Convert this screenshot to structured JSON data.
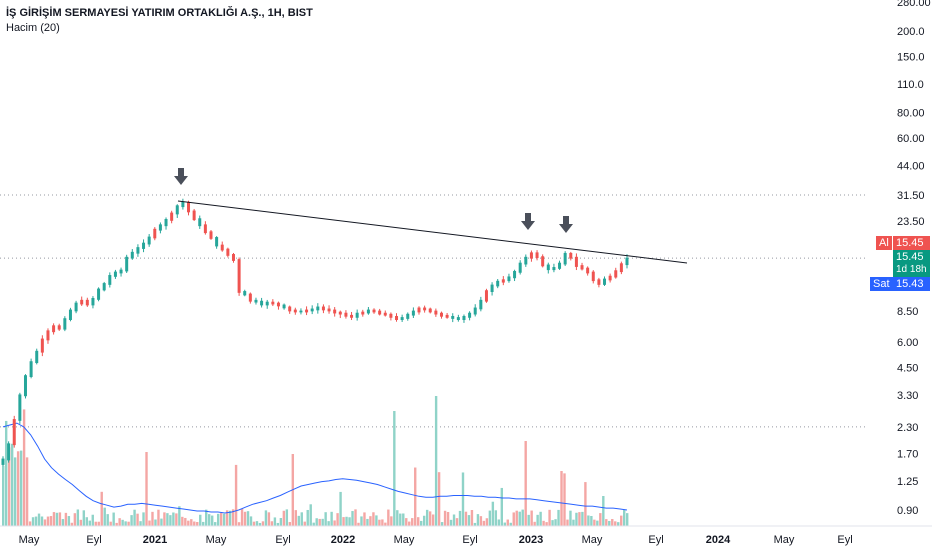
{
  "header": {
    "title": "İŞ GİRİŞİM SERMAYESİ YATIRIM ORTAKLIĞI A.Ş., 1H, BIST",
    "indicator": "Hacim (20)"
  },
  "price_axis": {
    "top_label": "280.00",
    "labels": [
      "200.0",
      "150.0",
      "110.0",
      "80.00",
      "60.00",
      "44.00",
      "31.50",
      "23.50",
      "15.45",
      "8.50",
      "6.00",
      "4.50",
      "3.30",
      "2.30",
      "1.70",
      "1.25",
      "0.90"
    ]
  },
  "badges": {
    "ask_label": "Al",
    "ask_value": "15.45",
    "last_value": "15.45",
    "countdown": "1d 18h",
    "bid_label": "Sat",
    "bid_value": "15.43"
  },
  "time_axis": [
    "May",
    "Eyl",
    "2021",
    "May",
    "Eyl",
    "2022",
    "May",
    "Eyl",
    "2023",
    "May",
    "Eyl",
    "2024",
    "May",
    "Eyl"
  ],
  "colors": {
    "up": "#26a69a",
    "down": "#ef5350",
    "up_vol": "#8fd3c8",
    "down_vol": "#f4a6a4",
    "ma": "#2962ff",
    "trendline": "#131722",
    "arrow": "#4a4f5a"
  },
  "chart_data": {
    "type": "candlestick",
    "series_type": "log",
    "annotations": [
      "downward trendline from 2021 peak",
      "three arrows marking touches of the trendline"
    ],
    "price_path": [
      1.6,
      1.9,
      2.5,
      3.3,
      4.1,
      4.8,
      5.4,
      6.2,
      6.8,
      7.2,
      7.0,
      7.8,
      8.6,
      9.3,
      9.6,
      9.2,
      9.8,
      10.9,
      11.6,
      12.7,
      13.2,
      13.5,
      15.6,
      16.5,
      17.4,
      18.3,
      19.6,
      21.4,
      22.5,
      23.9,
      25.7,
      27.9,
      29.0,
      26.3,
      24.1,
      22.5,
      20.8,
      19.5,
      17.9,
      17.1,
      16.1,
      15.2,
      10.6,
      10.3,
      9.6,
      9.5,
      9.2,
      9.4,
      9.3,
      9.1,
      8.9,
      8.6,
      8.5,
      8.5,
      8.6,
      8.7,
      8.9,
      8.7,
      8.6,
      8.4,
      8.3,
      8.1,
      8.0,
      8.3,
      8.4,
      8.6,
      8.5,
      8.3,
      8.2,
      8.0,
      7.8,
      7.9,
      8.2,
      8.5,
      8.8,
      8.7,
      8.5,
      8.3,
      8.1,
      8.0,
      7.9,
      7.8,
      8.0,
      8.3,
      8.8,
      9.6,
      10.7,
      11.4,
      11.9,
      12.1,
      12.5,
      13.3,
      14.6,
      15.6,
      16.4,
      15.7,
      14.3,
      13.7,
      13.9,
      14.6,
      16.3,
      15.6,
      14.2,
      13.8,
      13.2,
      12.1,
      11.6,
      12.2,
      12.6,
      13.4,
      14.5,
      15.45
    ],
    "volume_path": [
      2.3,
      2.35,
      2.4,
      2.3,
      2.1,
      1.85,
      1.6,
      1.45,
      1.35,
      1.27,
      1.2,
      1.12,
      1.05,
      1.0,
      0.97,
      0.95,
      0.93,
      0.94,
      0.96,
      0.96,
      0.97,
      0.96,
      0.95,
      0.94,
      0.93,
      0.92,
      0.91,
      0.9,
      0.89,
      0.89,
      0.88,
      0.88,
      0.87,
      0.88,
      0.9,
      0.93,
      0.96,
      0.98,
      1.0,
      1.03,
      1.06,
      1.1,
      1.14,
      1.18,
      1.2,
      1.22,
      1.24,
      1.25,
      1.27,
      1.28,
      1.27,
      1.26,
      1.24,
      1.22,
      1.2,
      1.17,
      1.14,
      1.11,
      1.09,
      1.07,
      1.05,
      1.04,
      1.04,
      1.05,
      1.05,
      1.06,
      1.06,
      1.06,
      1.05,
      1.05,
      1.04,
      1.04,
      1.03,
      1.03,
      1.02,
      1.02,
      1.02,
      1.01,
      1.0,
      0.99,
      0.98,
      0.97,
      0.96,
      0.95,
      0.94,
      0.94,
      0.93,
      0.92,
      0.92,
      0.91,
      0.9
    ]
  }
}
